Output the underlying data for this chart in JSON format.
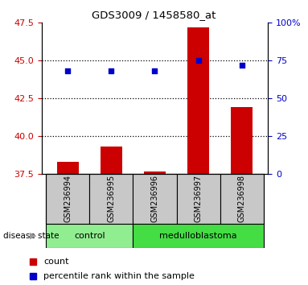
{
  "title": "GDS3009 / 1458580_at",
  "samples": [
    "GSM236994",
    "GSM236995",
    "GSM236996",
    "GSM236997",
    "GSM236998"
  ],
  "bar_values": [
    38.3,
    39.3,
    37.65,
    47.2,
    41.9
  ],
  "percentile_values": [
    68,
    68,
    68,
    75,
    72
  ],
  "ylim_left": [
    37.5,
    47.5
  ],
  "ylim_right": [
    0,
    100
  ],
  "yticks_left": [
    37.5,
    40.0,
    42.5,
    45.0,
    47.5
  ],
  "yticks_right": [
    0,
    25,
    50,
    75,
    100
  ],
  "bar_color": "#cc0000",
  "dot_color": "#0000cc",
  "disease_state_label": "disease state",
  "legend_bar_label": "count",
  "legend_dot_label": "percentile rank within the sample",
  "left_axis_color": "#cc0000",
  "right_axis_color": "#0000cc",
  "control_color": "#90EE90",
  "medulloblastoma_color": "#44dd44",
  "sample_box_color": "#c8c8c8",
  "n_control": 2,
  "n_samples": 5,
  "bar_width": 0.5
}
